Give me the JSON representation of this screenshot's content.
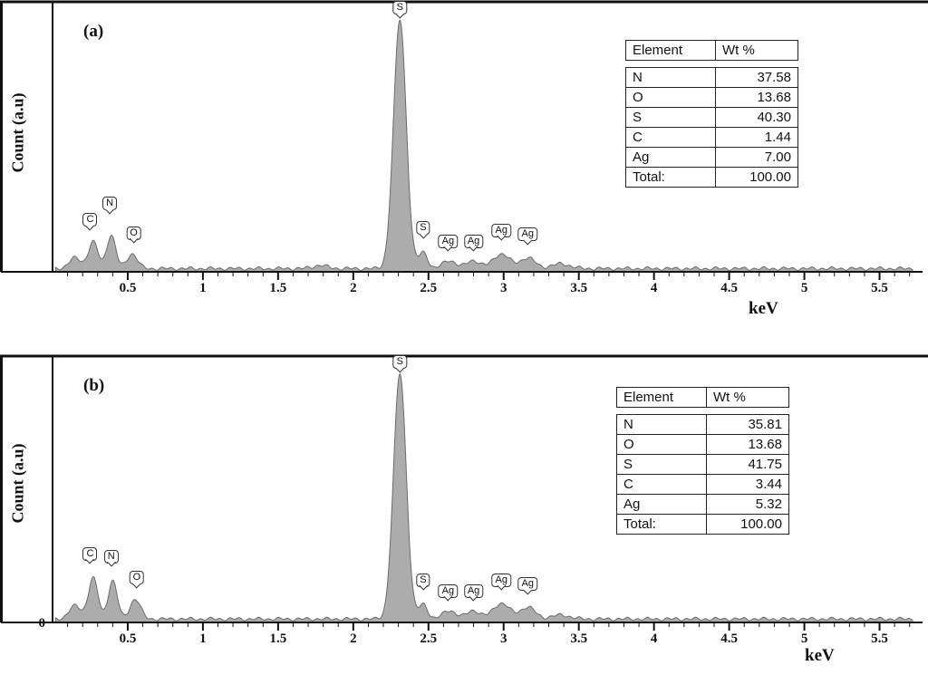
{
  "figure": {
    "background": "#ffffff"
  },
  "chart_data": [
    {
      "type": "area",
      "panel_label": "(a)",
      "xlabel": "keV",
      "ylabel": "Count (a.u)",
      "xlim": [
        0,
        5.75
      ],
      "x_major_ticks": [
        0.5,
        1,
        1.5,
        2,
        2.5,
        3,
        3.5,
        4,
        4.5,
        5,
        5.5
      ],
      "x_tick_labels": [
        "0.5",
        "1",
        "1.5",
        "2",
        "2.5",
        "3",
        "3.5",
        "4",
        "4.5",
        "5",
        "5.5"
      ],
      "x_minor_tick_step": 0.1,
      "y_zero_label": "",
      "fill_color": "#acacac",
      "stroke_color": "#6b6b6b",
      "baseline": 0.012,
      "peaks": [
        {
          "element": "",
          "center": 0.15,
          "height": 0.04,
          "width": 0.04
        },
        {
          "element": "C",
          "center": 0.27,
          "height": 0.1,
          "width": 0.032
        },
        {
          "element": "N",
          "center": 0.39,
          "height": 0.125,
          "width": 0.03
        },
        {
          "element": "O",
          "center": 0.53,
          "height": 0.055,
          "width": 0.035
        },
        {
          "element": "",
          "center": 1.78,
          "height": 0.012,
          "width": 0.05
        },
        {
          "element": "S",
          "center": 2.31,
          "height": 0.93,
          "width": 0.042
        },
        {
          "element": "S",
          "center": 2.465,
          "height": 0.06,
          "width": 0.03
        },
        {
          "element": "Ag",
          "center": 2.64,
          "height": 0.03,
          "width": 0.045
        },
        {
          "element": "Ag",
          "center": 2.8,
          "height": 0.03,
          "width": 0.045
        },
        {
          "element": "Ag",
          "center": 2.985,
          "height": 0.055,
          "width": 0.055
        },
        {
          "element": "Ag",
          "center": 3.16,
          "height": 0.04,
          "width": 0.05
        },
        {
          "element": "",
          "center": 3.38,
          "height": 0.018,
          "width": 0.06
        }
      ],
      "peak_labels": [
        {
          "text": "C",
          "x": 0.25,
          "y": 0.155
        },
        {
          "text": "N",
          "x": 0.38,
          "y": 0.215
        },
        {
          "text": "O",
          "x": 0.54,
          "y": 0.105
        },
        {
          "text": "S",
          "x": 2.31,
          "y": 0.945
        },
        {
          "text": "S",
          "x": 2.465,
          "y": 0.125
        },
        {
          "text": "Ag",
          "x": 2.63,
          "y": 0.075
        },
        {
          "text": "Ag",
          "x": 2.8,
          "y": 0.075
        },
        {
          "text": "Ag",
          "x": 2.985,
          "y": 0.115
        },
        {
          "text": "Ag",
          "x": 3.16,
          "y": 0.1
        }
      ],
      "table": {
        "headers": [
          "Element",
          "Wt %"
        ],
        "rows": [
          [
            "N",
            "37.58"
          ],
          [
            "O",
            "13.68"
          ],
          [
            "S",
            "40.30"
          ],
          [
            "C",
            "1.44"
          ],
          [
            "Ag",
            "7.00"
          ],
          [
            "Total:",
            "100.00"
          ]
        ]
      }
    },
    {
      "type": "area",
      "panel_label": "(b)",
      "xlabel": "keV",
      "ylabel": "Count (a.u)",
      "xlim": [
        0,
        5.75
      ],
      "x_major_ticks": [
        0.5,
        1,
        1.5,
        2,
        2.5,
        3,
        3.5,
        4,
        4.5,
        5,
        5.5
      ],
      "x_tick_labels": [
        "0.5",
        "1",
        "1.5",
        "2",
        "2.5",
        "3",
        "3.5",
        "4",
        "4.5",
        "5",
        "5.5"
      ],
      "x_minor_tick_step": 0.1,
      "y_zero_label": "0",
      "fill_color": "#acacac",
      "stroke_color": "#6b6b6b",
      "baseline": 0.013,
      "peaks": [
        {
          "element": "",
          "center": 0.15,
          "height": 0.05,
          "width": 0.04
        },
        {
          "element": "C",
          "center": 0.27,
          "height": 0.155,
          "width": 0.032
        },
        {
          "element": "N",
          "center": 0.4,
          "height": 0.145,
          "width": 0.03
        },
        {
          "element": "O",
          "center": 0.55,
          "height": 0.075,
          "width": 0.035
        },
        {
          "element": "S",
          "center": 2.31,
          "height": 0.93,
          "width": 0.042
        },
        {
          "element": "S",
          "center": 2.465,
          "height": 0.055,
          "width": 0.03
        },
        {
          "element": "Ag",
          "center": 2.64,
          "height": 0.032,
          "width": 0.045
        },
        {
          "element": "Ag",
          "center": 2.8,
          "height": 0.032,
          "width": 0.045
        },
        {
          "element": "Ag",
          "center": 2.985,
          "height": 0.06,
          "width": 0.055
        },
        {
          "element": "Ag",
          "center": 3.16,
          "height": 0.045,
          "width": 0.05
        },
        {
          "element": "",
          "center": 3.38,
          "height": 0.015,
          "width": 0.06
        }
      ],
      "peak_labels": [
        {
          "text": "C",
          "x": 0.25,
          "y": 0.22
        },
        {
          "text": "N",
          "x": 0.39,
          "y": 0.21
        },
        {
          "text": "O",
          "x": 0.56,
          "y": 0.13
        },
        {
          "text": "S",
          "x": 2.31,
          "y": 0.945
        },
        {
          "text": "S",
          "x": 2.465,
          "y": 0.12
        },
        {
          "text": "Ag",
          "x": 2.63,
          "y": 0.08
        },
        {
          "text": "Ag",
          "x": 2.8,
          "y": 0.08
        },
        {
          "text": "Ag",
          "x": 2.985,
          "y": 0.12
        },
        {
          "text": "Ag",
          "x": 3.16,
          "y": 0.105
        }
      ],
      "table": {
        "headers": [
          "Element",
          "Wt %"
        ],
        "rows": [
          [
            "N",
            "35.81"
          ],
          [
            "O",
            "13.68"
          ],
          [
            "S",
            "41.75"
          ],
          [
            "C",
            "3.44"
          ],
          [
            "Ag",
            "5.32"
          ],
          [
            "Total:",
            "100.00"
          ]
        ]
      }
    }
  ]
}
